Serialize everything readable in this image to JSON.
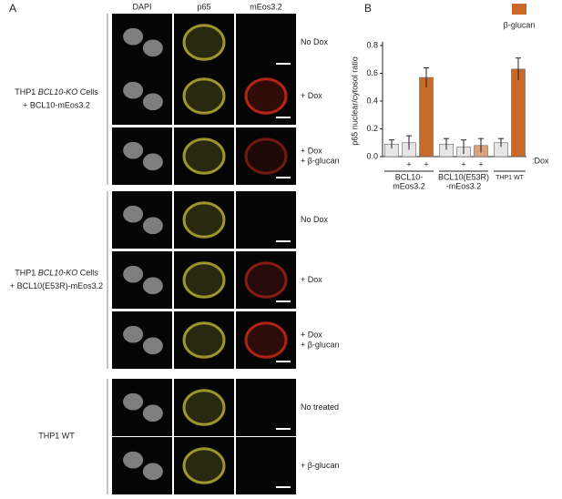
{
  "panel_a": {
    "label": "A",
    "columns": [
      "DAPI",
      "p65",
      "mEos3.2"
    ],
    "groups": [
      {
        "label_parts": [
          "THP1 ",
          "BCL10-KO",
          " Cells"
        ],
        "label_line2": "+ BCL10-mEos3.2",
        "rows": [
          [
            "No Dox"
          ],
          [
            "+ Dox"
          ],
          [
            "+ Dox",
            "+ β-glucan"
          ]
        ]
      },
      {
        "label_parts": [
          "THP1 ",
          "BCL10-KO",
          " Cells"
        ],
        "label_line2": "+ BCL10(E53R)-mEos3.2",
        "rows": [
          [
            "No Dox"
          ],
          [
            "+ Dox"
          ],
          [
            "+ Dox",
            "+ β-glucan"
          ]
        ]
      },
      {
        "label_parts": [
          "THP1 WT"
        ],
        "rows": [
          [
            "No treated"
          ],
          [
            "+ β-glucan"
          ]
        ]
      }
    ]
  },
  "chart_data": {
    "type": "bar",
    "panel_label": "B",
    "y_label": "p65 nuclear/cytosol ratio",
    "categories": [
      null,
      null,
      null,
      null,
      null,
      null,
      null,
      null
    ],
    "values": [
      0.09,
      0.1,
      0.57,
      0.09,
      0.07,
      0.08,
      0.1,
      0.63
    ],
    "errors": [
      0.03,
      0.05,
      0.07,
      0.04,
      0.05,
      0.05,
      0.03,
      0.08
    ],
    "colors": [
      "#e6e6e6",
      "#e6e6e6",
      "#c8692a",
      "#e6e6e6",
      "#e6e6e6",
      "#d9a27a",
      "#e6e6e6",
      "#c8692a"
    ],
    "dox": [
      null,
      "+",
      "+",
      null,
      "+",
      "+",
      null,
      null
    ],
    "dox_label": ":Dox",
    "groups": [
      [
        "BCL10-",
        "mEos3.2"
      ],
      [
        "BCL10(E53R)",
        "-mEos3.2"
      ],
      [
        "THP1 WT"
      ]
    ],
    "legend": {
      "label": "β-glucan",
      "color": "#c8692a"
    },
    "ylim": [
      0,
      0.8
    ],
    "yticks": [
      {
        "value": 0,
        "label": "0.0"
      },
      0.2,
      0.4,
      0.6,
      0.8
    ]
  }
}
